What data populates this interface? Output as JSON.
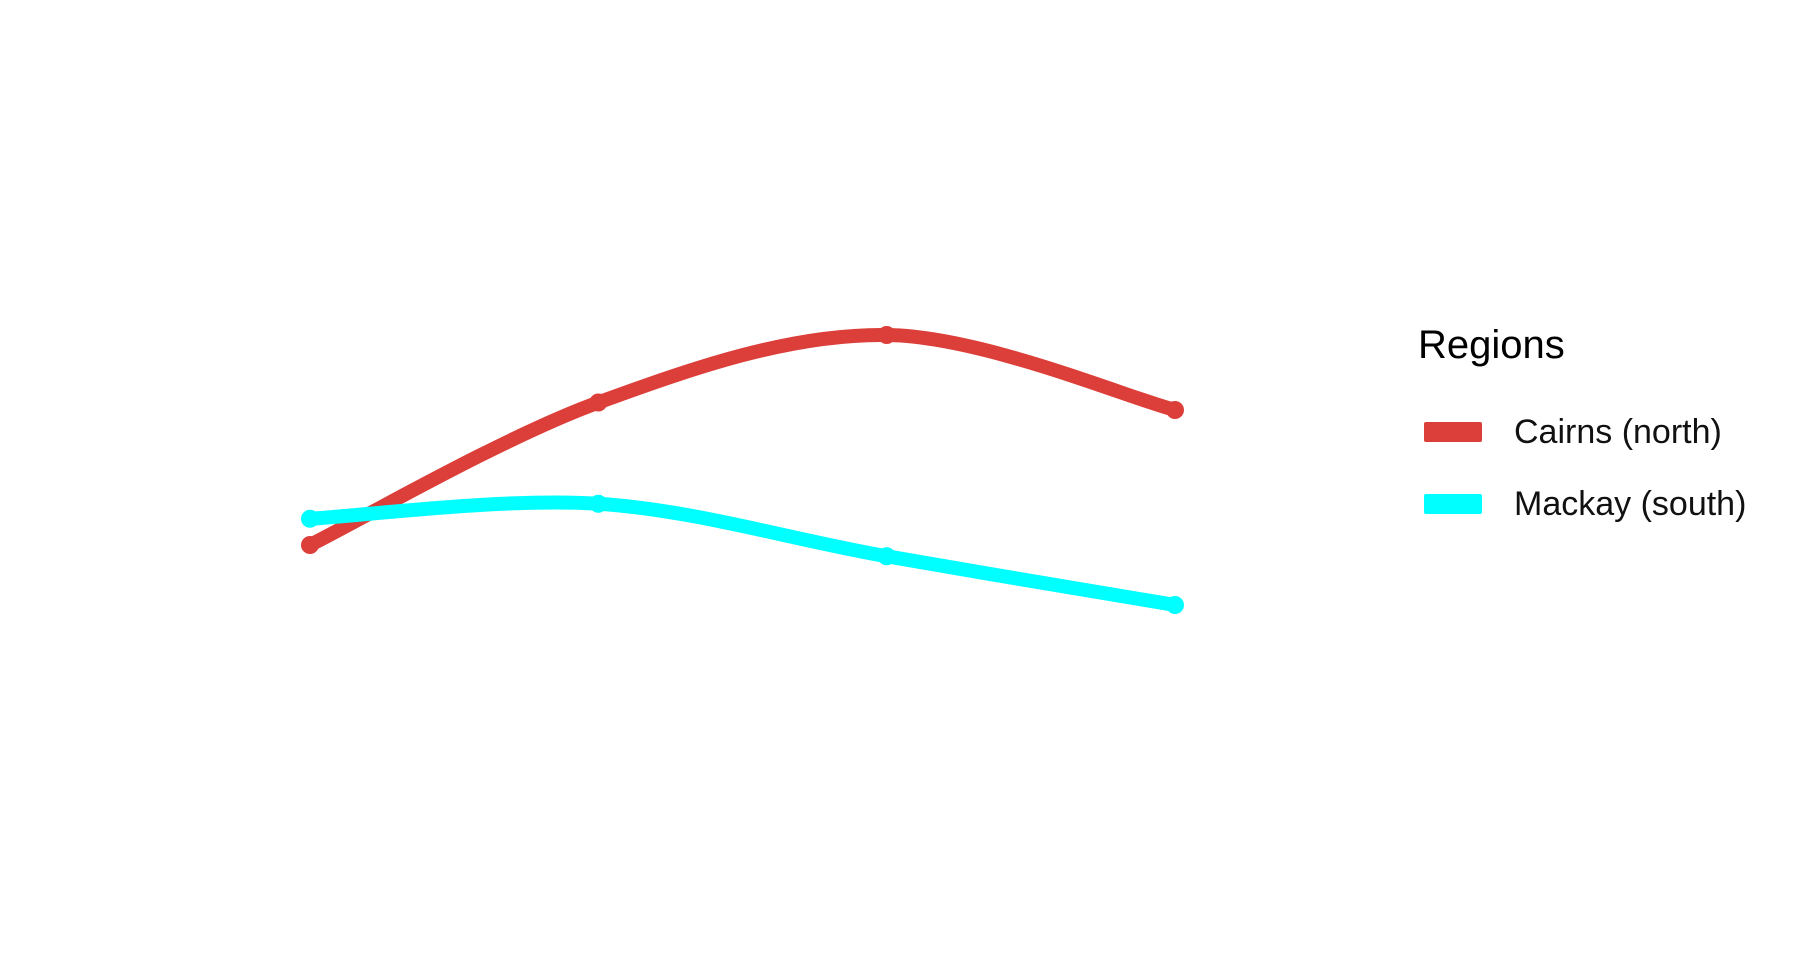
{
  "chart_data": {
    "type": "line",
    "x": [
      1,
      2,
      3,
      4
    ],
    "ylim": [
      0,
      10
    ],
    "grid": false,
    "axes_visible": false,
    "smooth": true,
    "legend": {
      "title": "Regions",
      "position": "right"
    },
    "series": [
      {
        "name": "Cairns (north)",
        "color": "#dc3e39",
        "values": [
          4.2,
          6.1,
          7.0,
          6.0
        ]
      },
      {
        "name": "Mackay (south)",
        "color": "#00ffff",
        "values": [
          4.55,
          4.75,
          4.05,
          3.4
        ]
      }
    ]
  }
}
